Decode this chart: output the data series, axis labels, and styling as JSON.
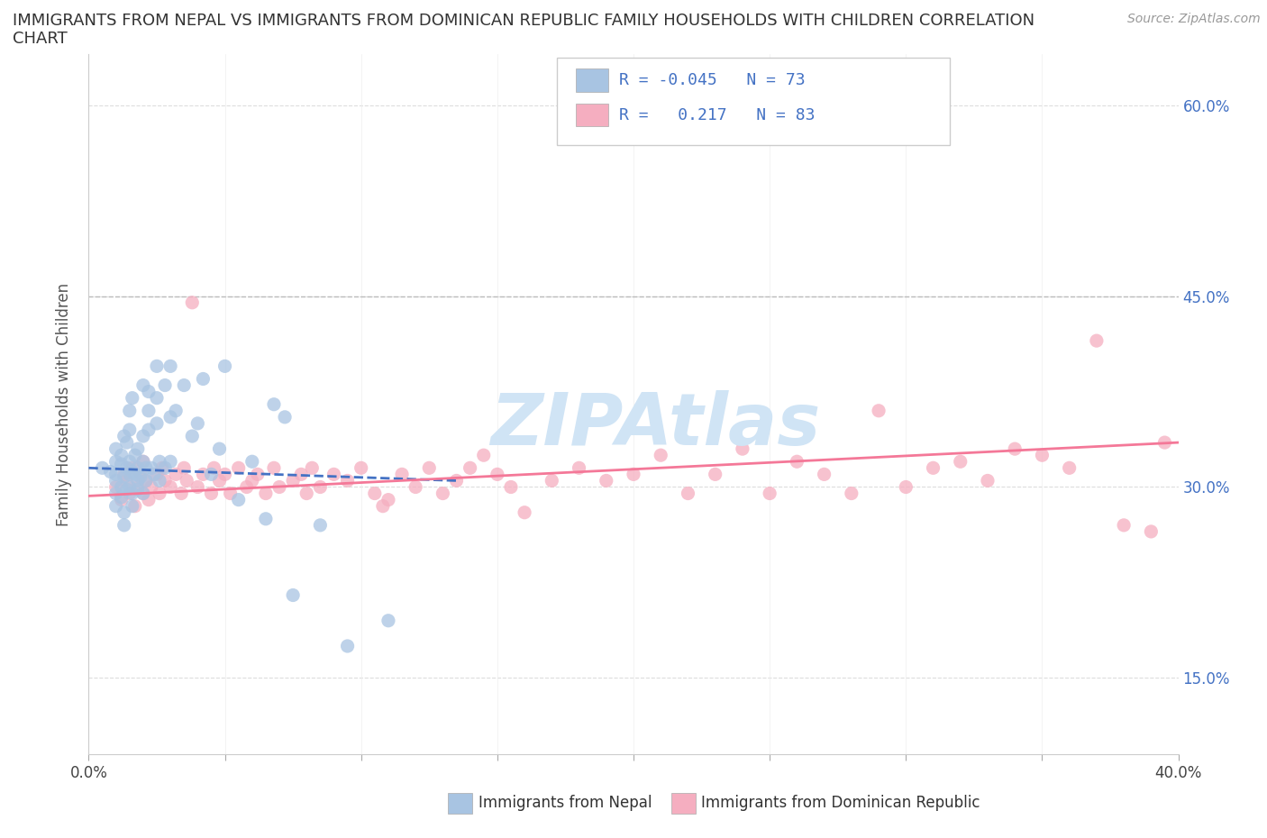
{
  "title_line1": "IMMIGRANTS FROM NEPAL VS IMMIGRANTS FROM DOMINICAN REPUBLIC FAMILY HOUSEHOLDS WITH CHILDREN CORRELATION",
  "title_line2": "CHART",
  "source": "Source: ZipAtlas.com",
  "ylabel": "Family Households with Children",
  "xlim": [
    0.0,
    0.4
  ],
  "ylim": [
    0.09,
    0.64
  ],
  "x_ticks": [
    0.0,
    0.05,
    0.1,
    0.15,
    0.2,
    0.25,
    0.3,
    0.35,
    0.4
  ],
  "y_ticks": [
    0.15,
    0.3,
    0.45,
    0.6
  ],
  "y_tick_labels": [
    "15.0%",
    "30.0%",
    "45.0%",
    "60.0%"
  ],
  "nepal_color": "#a8c4e2",
  "dr_color": "#f5aec0",
  "nepal_line_color": "#4472c4",
  "dr_line_color": "#f47898",
  "nepal_R": -0.045,
  "nepal_N": 73,
  "dr_R": 0.217,
  "dr_N": 83,
  "watermark": "ZIPAtlas",
  "watermark_color": "#d0e4f5",
  "legend_text_color": "#4472c4",
  "hline_y": 0.45,
  "hline_color": "#bbbbbb",
  "nepal_trend_x0": 0.0,
  "nepal_trend_y0": 0.315,
  "nepal_trend_x1": 0.135,
  "nepal_trend_y1": 0.305,
  "dr_trend_x0": 0.0,
  "dr_trend_y0": 0.293,
  "dr_trend_x1": 0.4,
  "dr_trend_y1": 0.335,
  "nepal_scatter": [
    [
      0.005,
      0.315
    ],
    [
      0.008,
      0.312
    ],
    [
      0.01,
      0.31
    ],
    [
      0.01,
      0.33
    ],
    [
      0.01,
      0.295
    ],
    [
      0.01,
      0.285
    ],
    [
      0.01,
      0.32
    ],
    [
      0.01,
      0.305
    ],
    [
      0.012,
      0.318
    ],
    [
      0.012,
      0.3
    ],
    [
      0.012,
      0.292
    ],
    [
      0.012,
      0.325
    ],
    [
      0.013,
      0.308
    ],
    [
      0.013,
      0.34
    ],
    [
      0.013,
      0.28
    ],
    [
      0.013,
      0.27
    ],
    [
      0.014,
      0.315
    ],
    [
      0.014,
      0.335
    ],
    [
      0.014,
      0.298
    ],
    [
      0.015,
      0.31
    ],
    [
      0.015,
      0.32
    ],
    [
      0.015,
      0.3
    ],
    [
      0.015,
      0.36
    ],
    [
      0.015,
      0.345
    ],
    [
      0.016,
      0.312
    ],
    [
      0.016,
      0.295
    ],
    [
      0.016,
      0.37
    ],
    [
      0.016,
      0.285
    ],
    [
      0.017,
      0.31
    ],
    [
      0.017,
      0.325
    ],
    [
      0.018,
      0.305
    ],
    [
      0.018,
      0.315
    ],
    [
      0.018,
      0.33
    ],
    [
      0.018,
      0.298
    ],
    [
      0.019,
      0.308
    ],
    [
      0.02,
      0.32
    ],
    [
      0.02,
      0.34
    ],
    [
      0.02,
      0.295
    ],
    [
      0.02,
      0.38
    ],
    [
      0.021,
      0.315
    ],
    [
      0.021,
      0.305
    ],
    [
      0.022,
      0.36
    ],
    [
      0.022,
      0.375
    ],
    [
      0.022,
      0.345
    ],
    [
      0.023,
      0.315
    ],
    [
      0.024,
      0.31
    ],
    [
      0.025,
      0.395
    ],
    [
      0.025,
      0.37
    ],
    [
      0.025,
      0.35
    ],
    [
      0.026,
      0.32
    ],
    [
      0.026,
      0.305
    ],
    [
      0.028,
      0.315
    ],
    [
      0.028,
      0.38
    ],
    [
      0.03,
      0.32
    ],
    [
      0.03,
      0.355
    ],
    [
      0.03,
      0.395
    ],
    [
      0.032,
      0.36
    ],
    [
      0.035,
      0.38
    ],
    [
      0.038,
      0.34
    ],
    [
      0.04,
      0.35
    ],
    [
      0.042,
      0.385
    ],
    [
      0.045,
      0.31
    ],
    [
      0.048,
      0.33
    ],
    [
      0.05,
      0.395
    ],
    [
      0.055,
      0.29
    ],
    [
      0.06,
      0.32
    ],
    [
      0.065,
      0.275
    ],
    [
      0.068,
      0.365
    ],
    [
      0.072,
      0.355
    ],
    [
      0.075,
      0.215
    ],
    [
      0.085,
      0.27
    ],
    [
      0.095,
      0.175
    ],
    [
      0.11,
      0.195
    ]
  ],
  "dr_scatter": [
    [
      0.01,
      0.3
    ],
    [
      0.012,
      0.29
    ],
    [
      0.013,
      0.31
    ],
    [
      0.014,
      0.305
    ],
    [
      0.015,
      0.295
    ],
    [
      0.016,
      0.315
    ],
    [
      0.017,
      0.285
    ],
    [
      0.018,
      0.3
    ],
    [
      0.019,
      0.31
    ],
    [
      0.02,
      0.295
    ],
    [
      0.02,
      0.32
    ],
    [
      0.021,
      0.305
    ],
    [
      0.022,
      0.29
    ],
    [
      0.023,
      0.3
    ],
    [
      0.025,
      0.31
    ],
    [
      0.026,
      0.295
    ],
    [
      0.027,
      0.315
    ],
    [
      0.028,
      0.305
    ],
    [
      0.03,
      0.3
    ],
    [
      0.032,
      0.31
    ],
    [
      0.034,
      0.295
    ],
    [
      0.035,
      0.315
    ],
    [
      0.036,
      0.305
    ],
    [
      0.038,
      0.445
    ],
    [
      0.04,
      0.3
    ],
    [
      0.042,
      0.31
    ],
    [
      0.045,
      0.295
    ],
    [
      0.046,
      0.315
    ],
    [
      0.048,
      0.305
    ],
    [
      0.05,
      0.31
    ],
    [
      0.052,
      0.295
    ],
    [
      0.055,
      0.315
    ],
    [
      0.058,
      0.3
    ],
    [
      0.06,
      0.305
    ],
    [
      0.062,
      0.31
    ],
    [
      0.065,
      0.295
    ],
    [
      0.068,
      0.315
    ],
    [
      0.07,
      0.3
    ],
    [
      0.075,
      0.305
    ],
    [
      0.078,
      0.31
    ],
    [
      0.08,
      0.295
    ],
    [
      0.082,
      0.315
    ],
    [
      0.085,
      0.3
    ],
    [
      0.09,
      0.31
    ],
    [
      0.095,
      0.305
    ],
    [
      0.1,
      0.315
    ],
    [
      0.105,
      0.295
    ],
    [
      0.108,
      0.285
    ],
    [
      0.11,
      0.29
    ],
    [
      0.115,
      0.31
    ],
    [
      0.12,
      0.3
    ],
    [
      0.125,
      0.315
    ],
    [
      0.13,
      0.295
    ],
    [
      0.135,
      0.305
    ],
    [
      0.14,
      0.315
    ],
    [
      0.145,
      0.325
    ],
    [
      0.15,
      0.31
    ],
    [
      0.155,
      0.3
    ],
    [
      0.16,
      0.28
    ],
    [
      0.17,
      0.305
    ],
    [
      0.18,
      0.315
    ],
    [
      0.19,
      0.305
    ],
    [
      0.2,
      0.31
    ],
    [
      0.21,
      0.325
    ],
    [
      0.22,
      0.295
    ],
    [
      0.23,
      0.31
    ],
    [
      0.24,
      0.33
    ],
    [
      0.25,
      0.295
    ],
    [
      0.26,
      0.32
    ],
    [
      0.27,
      0.31
    ],
    [
      0.28,
      0.295
    ],
    [
      0.29,
      0.36
    ],
    [
      0.3,
      0.3
    ],
    [
      0.31,
      0.315
    ],
    [
      0.32,
      0.32
    ],
    [
      0.33,
      0.305
    ],
    [
      0.34,
      0.33
    ],
    [
      0.35,
      0.325
    ],
    [
      0.36,
      0.315
    ],
    [
      0.37,
      0.415
    ],
    [
      0.38,
      0.27
    ],
    [
      0.39,
      0.265
    ],
    [
      0.395,
      0.335
    ]
  ]
}
